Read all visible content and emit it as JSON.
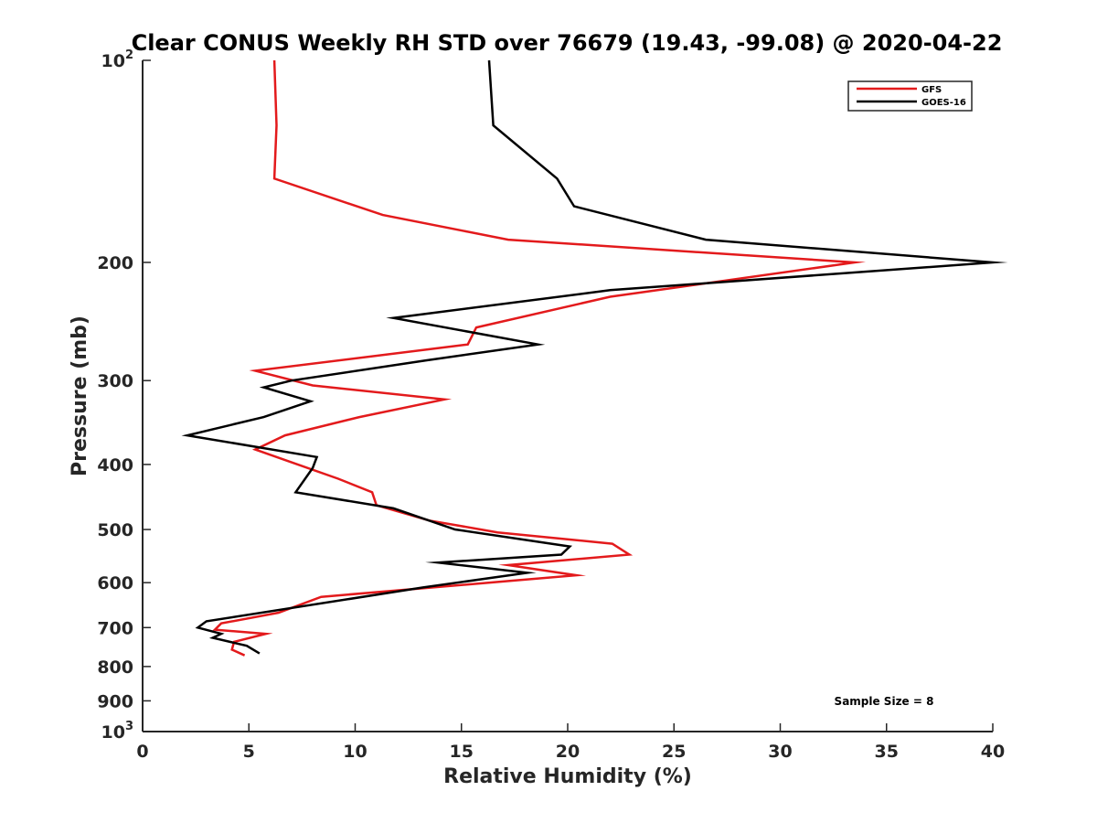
{
  "chart_data": {
    "type": "line",
    "title": "Clear CONUS Weekly RH STD over 76679 (19.43, -99.08) @ 2020-04-22",
    "xlabel": "Relative Humidity (%)",
    "ylabel": "Pressure (mb)",
    "xlim": [
      0,
      40
    ],
    "ylim": [
      100,
      1000
    ],
    "y_scale": "log",
    "y_reversed": true,
    "grid": false,
    "legend_position": "top-right",
    "xticks": [
      {
        "value": 0,
        "label": "0"
      },
      {
        "value": 5,
        "label": "5"
      },
      {
        "value": 10,
        "label": "10"
      },
      {
        "value": 15,
        "label": "15"
      },
      {
        "value": 20,
        "label": "20"
      },
      {
        "value": 25,
        "label": "25"
      },
      {
        "value": 30,
        "label": "30"
      },
      {
        "value": 35,
        "label": "35"
      },
      {
        "value": 40,
        "label": "40"
      }
    ],
    "yticks": [
      {
        "value": 100,
        "base": "10",
        "exp": "2"
      },
      {
        "value": 200,
        "label": "200"
      },
      {
        "value": 300,
        "label": "300"
      },
      {
        "value": 400,
        "label": "400"
      },
      {
        "value": 500,
        "label": "500"
      },
      {
        "value": 600,
        "label": "600"
      },
      {
        "value": 700,
        "label": "700"
      },
      {
        "value": 800,
        "label": "800"
      },
      {
        "value": 900,
        "label": "900"
      },
      {
        "value": 1000,
        "base": "10",
        "exp": "3"
      }
    ],
    "series": [
      {
        "name": "GFS",
        "color": "#e31a1c",
        "points": [
          [
            6.2,
            100
          ],
          [
            6.3,
            125
          ],
          [
            6.2,
            150
          ],
          [
            11.3,
            170
          ],
          [
            17.2,
            185
          ],
          [
            33.5,
            200
          ],
          [
            22.0,
            225
          ],
          [
            15.7,
            250
          ],
          [
            15.3,
            265
          ],
          [
            5.3,
            290
          ],
          [
            8.0,
            305
          ],
          [
            14.2,
            320
          ],
          [
            10.2,
            340
          ],
          [
            6.7,
            362
          ],
          [
            5.3,
            380
          ],
          [
            9.2,
            420
          ],
          [
            10.8,
            440
          ],
          [
            11.0,
            460
          ],
          [
            13.5,
            485
          ],
          [
            16.7,
            505
          ],
          [
            22.1,
            525
          ],
          [
            22.9,
            545
          ],
          [
            17.2,
            565
          ],
          [
            20.4,
            585
          ],
          [
            8.4,
            630
          ],
          [
            6.4,
            665
          ],
          [
            3.7,
            690
          ],
          [
            3.4,
            705
          ],
          [
            5.8,
            715
          ],
          [
            4.3,
            735
          ],
          [
            4.2,
            755
          ],
          [
            4.8,
            770
          ]
        ]
      },
      {
        "name": "GOES-16",
        "color": "#000000",
        "points": [
          [
            16.3,
            100
          ],
          [
            16.5,
            125
          ],
          [
            19.5,
            150
          ],
          [
            20.3,
            165
          ],
          [
            26.5,
            185
          ],
          [
            40.0,
            200
          ],
          [
            22.0,
            220
          ],
          [
            11.8,
            242
          ],
          [
            18.6,
            265
          ],
          [
            13.3,
            280
          ],
          [
            7.0,
            300
          ],
          [
            5.7,
            307
          ],
          [
            7.9,
            322
          ],
          [
            5.7,
            340
          ],
          [
            2.1,
            362
          ],
          [
            8.2,
            390
          ],
          [
            8.0,
            405
          ],
          [
            7.2,
            440
          ],
          [
            11.8,
            465
          ],
          [
            14.7,
            500
          ],
          [
            20.1,
            530
          ],
          [
            19.7,
            545
          ],
          [
            13.9,
            560
          ],
          [
            18.1,
            580
          ],
          [
            13.2,
            610
          ],
          [
            3.0,
            685
          ],
          [
            2.6,
            700
          ],
          [
            3.7,
            715
          ],
          [
            3.3,
            725
          ],
          [
            4.9,
            745
          ],
          [
            5.5,
            765
          ]
        ]
      }
    ],
    "annotations": [
      {
        "text": "Sample Size = 8"
      }
    ]
  }
}
